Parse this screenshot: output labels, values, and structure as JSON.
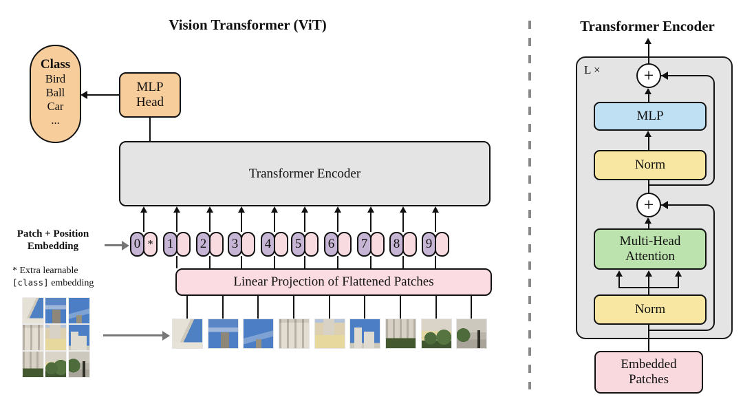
{
  "colors": {
    "orange": "#f8cd9c",
    "gray_box": "#e4e4e4",
    "purple": "#c6b5d4",
    "pink": "#f8dbe1",
    "pink_box": "#fbdce2",
    "blue": "#bfe0f2",
    "yellow": "#f8e7a2",
    "green": "#bce3ae",
    "pink_embed": "#f9d9de",
    "arrow_gray": "#777777",
    "dash_gray": "#888888",
    "ink": "#111111"
  },
  "left_panel": {
    "title": "Vision Transformer (ViT)",
    "class_pill": {
      "heading": "Class",
      "items": [
        "Bird",
        "Ball",
        "Car",
        "..."
      ]
    },
    "mlp_head": {
      "line1": "MLP",
      "line2": "Head"
    },
    "encoder_label": "Transformer Encoder",
    "embedding_label": {
      "line1": "Patch + Position",
      "line2": "Embedding"
    },
    "footnote": {
      "line1": "* Extra learnable",
      "code": "[class]",
      "line2_rest": " embedding"
    },
    "linear_projection_label": "Linear Projection of Flattened Patches",
    "tokens": [
      {
        "label": "0",
        "extra": "*"
      },
      {
        "label": "1",
        "extra": ""
      },
      {
        "label": "2",
        "extra": ""
      },
      {
        "label": "3",
        "extra": ""
      },
      {
        "label": "4",
        "extra": ""
      },
      {
        "label": "5",
        "extra": ""
      },
      {
        "label": "6",
        "extra": ""
      },
      {
        "label": "7",
        "extra": ""
      },
      {
        "label": "8",
        "extra": ""
      },
      {
        "label": "9",
        "extra": ""
      }
    ],
    "patches": [
      {
        "style_id": "p1",
        "desc": "white dome roof against blue sky"
      },
      {
        "style_id": "p2",
        "desc": "blue sky with bell tower"
      },
      {
        "style_id": "p3",
        "desc": "blue sky with spire tip"
      },
      {
        "style_id": "p4",
        "desc": "white palace facade with windows"
      },
      {
        "style_id": "p5",
        "desc": "yellow facade with white tower"
      },
      {
        "style_id": "p6",
        "desc": "church towers and dome with sky"
      },
      {
        "style_id": "p7",
        "desc": "facade with green hedge"
      },
      {
        "style_id": "p8",
        "desc": "yellow building with round bushes"
      },
      {
        "style_id": "p9",
        "desc": "pavement with bushes and lamp post"
      }
    ]
  },
  "right_panel": {
    "title": "Transformer Encoder",
    "loop_label": "L ×",
    "plus_symbol": "+",
    "blocks": {
      "mlp": "MLP",
      "norm_top": "Norm",
      "mha": {
        "line1": "Multi-Head",
        "line2": "Attention"
      },
      "norm_bottom": "Norm",
      "embedded": {
        "line1": "Embedded",
        "line2": "Patches"
      }
    }
  }
}
